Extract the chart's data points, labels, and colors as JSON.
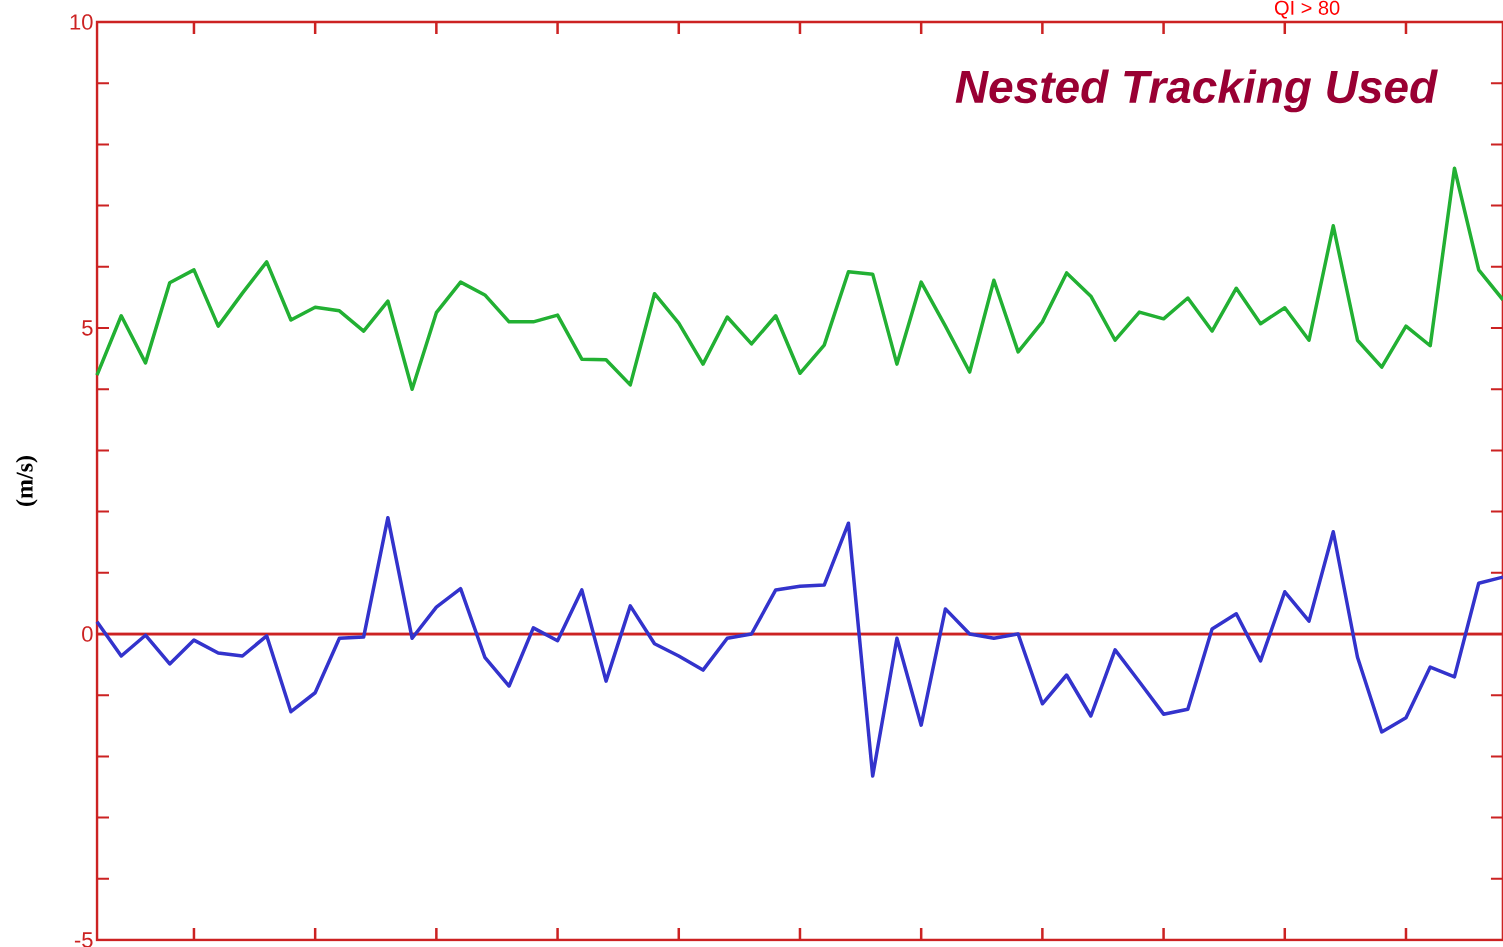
{
  "chart_data": {
    "type": "line",
    "ylabel": "(m/s)",
    "annotations": [
      "Nested Tracking Used",
      "QI > 80"
    ],
    "categories": [
      null,
      null,
      null,
      null,
      null,
      null,
      null,
      null,
      null,
      null,
      null,
      null,
      null,
      null,
      null,
      null,
      null,
      null,
      null,
      null,
      null,
      null,
      null,
      null,
      null,
      null,
      null,
      null,
      null,
      null,
      null,
      null,
      null,
      null,
      null,
      null,
      null,
      null,
      null,
      null,
      null,
      null,
      null,
      null,
      null,
      null,
      null,
      null,
      null,
      null,
      null,
      null,
      null,
      null,
      null,
      null,
      null,
      null,
      null
    ],
    "series": [
      {
        "color": "#22b033",
        "values": [
          4.23,
          5.2,
          4.43,
          5.74,
          5.95,
          5.03,
          5.57,
          6.08,
          5.13,
          5.34,
          5.28,
          4.95,
          5.44,
          4.0,
          5.25,
          5.75,
          5.54,
          5.1,
          5.1,
          5.21,
          4.49,
          4.48,
          4.07,
          5.56,
          5.08,
          4.41,
          5.18,
          4.74,
          5.2,
          4.26,
          4.72,
          5.92,
          5.88,
          4.41,
          5.75,
          5.03,
          4.28,
          5.78,
          4.61,
          5.1,
          5.9,
          5.52,
          4.8,
          5.26,
          5.15,
          5.49,
          4.95,
          5.65,
          5.07,
          5.33,
          4.8,
          6.67,
          4.8,
          4.36,
          5.03,
          4.71,
          7.61,
          5.95,
          5.46
        ]
      },
      {
        "color": "#3333cc",
        "values": [
          0.2,
          -0.36,
          -0.02,
          -0.49,
          -0.1,
          -0.31,
          -0.36,
          -0.03,
          -1.27,
          -0.96,
          -0.07,
          -0.05,
          1.9,
          -0.07,
          0.44,
          0.74,
          -0.38,
          -0.85,
          0.1,
          -0.11,
          0.72,
          -0.77,
          0.46,
          -0.16,
          -0.36,
          -0.59,
          -0.07,
          0,
          0.72,
          0.78,
          0.8,
          1.81,
          -2.32,
          -0.07,
          -1.49,
          0.41,
          0,
          -0.07,
          0,
          -1.14,
          -0.67,
          -1.34,
          -0.26,
          -0.78,
          -1.31,
          -1.23,
          0.08,
          0.33,
          -0.44,
          0.69,
          0.21,
          1.67,
          -0.38,
          -1.6,
          -1.37,
          -0.54,
          -0.7,
          0.83,
          0.93
        ]
      }
    ],
    "ylim": [
      -5,
      10
    ],
    "yticks": [
      -5,
      {
        "value": -4,
        "label": null
      },
      {
        "value": -3,
        "label": null
      },
      {
        "value": -2,
        "label": null
      },
      {
        "value": -1,
        "label": null
      },
      0,
      {
        "value": 1,
        "label": null
      },
      {
        "value": 2,
        "label": null
      },
      {
        "value": 3,
        "label": null
      },
      {
        "value": 4,
        "label": null
      },
      5,
      {
        "value": 6,
        "label": null
      },
      {
        "value": 7,
        "label": null
      },
      {
        "value": 8,
        "label": null
      },
      {
        "value": 9,
        "label": null
      },
      10
    ],
    "tick_labels": "y",
    "ref_lines": [
      {
        "axis": "y",
        "value": 0,
        "color": "#cc2222"
      }
    ]
  }
}
